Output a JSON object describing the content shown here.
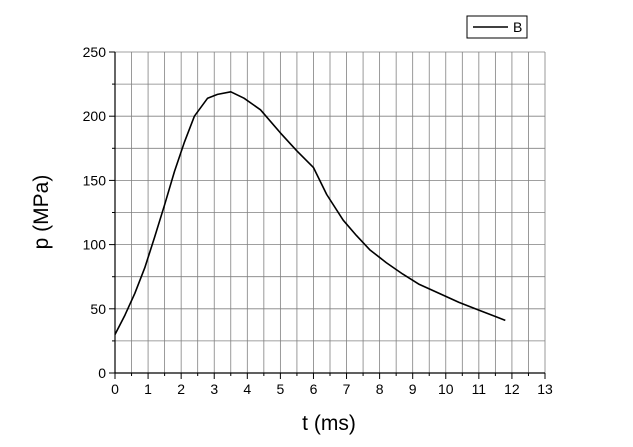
{
  "chart_data": {
    "type": "line",
    "xlabel": "t (ms)",
    "ylabel": "p (MPa)",
    "xlim": [
      0,
      13
    ],
    "ylim": [
      0,
      250
    ],
    "x_ticks": [
      0,
      1,
      2,
      3,
      4,
      5,
      6,
      7,
      8,
      9,
      10,
      11,
      12,
      13
    ],
    "y_ticks": [
      0,
      50,
      100,
      150,
      200,
      250
    ],
    "grid": true,
    "minor_grid": true,
    "legend_position": "top-right",
    "series": [
      {
        "name": "B",
        "color": "#000000",
        "x": [
          0,
          0.3,
          0.6,
          0.9,
          1.2,
          1.5,
          1.8,
          2.1,
          2.4,
          2.8,
          3.1,
          3.5,
          3.9,
          4.4,
          5.0,
          5.5,
          6.0,
          6.4,
          6.9,
          7.3,
          7.7,
          8.2,
          8.7,
          9.2,
          9.8,
          10.4,
          11.0,
          11.5,
          11.8
        ],
        "y": [
          30,
          45,
          62,
          82,
          106,
          131,
          157,
          180,
          200,
          214,
          217,
          219,
          214,
          205,
          187,
          173,
          160,
          139,
          119,
          107,
          96,
          86,
          77,
          69,
          62,
          55,
          49,
          44,
          41
        ]
      }
    ]
  }
}
